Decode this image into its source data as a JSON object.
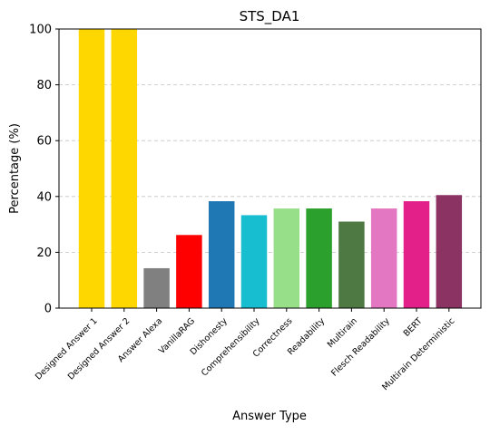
{
  "chart_data": {
    "type": "bar",
    "title": "STS_DA1",
    "xlabel": "Answer Type",
    "ylabel": "Percentage (%)",
    "ylim": [
      0,
      100
    ],
    "yticks": [
      0,
      20,
      40,
      60,
      80,
      100
    ],
    "grid": "y-dashed",
    "categories": [
      "Designed Answer 1",
      "Designed Answer 2",
      "Answer Alexa",
      "VanillaRAG",
      "Dishonesty",
      "Comprehensibility",
      "Correctness",
      "Readability",
      "Multirain",
      "Flesch Readability",
      "BERT",
      "Multirain Deterministic"
    ],
    "values": [
      100,
      100,
      14.3,
      26.2,
      38.3,
      33.3,
      35.7,
      35.7,
      31.0,
      35.7,
      38.3,
      40.5
    ],
    "colors": [
      "#ffd700",
      "#ffd700",
      "#808080",
      "#ff0000",
      "#1f77b4",
      "#17becf",
      "#98df8a",
      "#2ca02c",
      "#4f7942",
      "#e377c2",
      "#e31f8a",
      "#8b3464"
    ]
  }
}
